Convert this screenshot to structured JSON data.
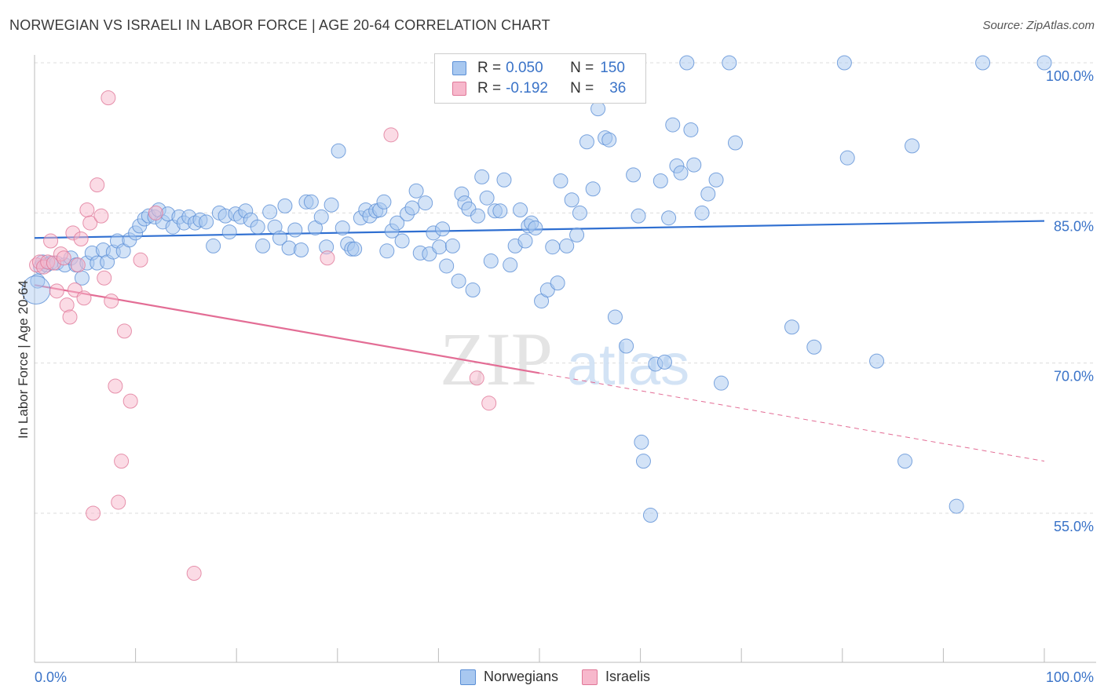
{
  "title": "NORWEGIAN VS ISRAELI IN LABOR FORCE | AGE 20-64 CORRELATION CHART",
  "source": "Source: ZipAtlas.com",
  "watermark": {
    "part1": "ZIP",
    "part2": "atlas"
  },
  "legend": {
    "r_label": "R = ",
    "n_label": "N = ",
    "rows": [
      {
        "r": "0.050",
        "n": "150",
        "color": "#a8c8f0",
        "border": "#5b8fd6"
      },
      {
        "r": "-0.192",
        "n": "36",
        "color": "#f7b8cc",
        "border": "#e07898"
      }
    ]
  },
  "bottom_legend": [
    {
      "label": "Norwegians",
      "color": "#a8c8f0",
      "border": "#5b8fd6"
    },
    {
      "label": "Israelis",
      "color": "#f7b8cc",
      "border": "#e07898"
    }
  ],
  "chart_data": {
    "type": "scatter",
    "ylabel": "In Labor Force | Age 20-64",
    "xlim": [
      0,
      100
    ],
    "ylim": [
      40,
      103
    ],
    "x_tick_labels": [
      {
        "value": 0,
        "label": "0.0%"
      },
      {
        "value": 100,
        "label": "100.0%"
      }
    ],
    "y_tick_labels": [
      {
        "value": 100,
        "label": "100.0%"
      },
      {
        "value": 85,
        "label": "85.0%"
      },
      {
        "value": 70,
        "label": "70.0%"
      },
      {
        "value": 55,
        "label": "55.0%"
      }
    ],
    "grid": "horizontal dashed",
    "series": [
      {
        "name": "Norwegians",
        "color": "#a8c8f0",
        "stroke": "#5b8fd6",
        "trend": {
          "x": [
            0,
            100
          ],
          "y": [
            82.5,
            84.2
          ],
          "color": "#2f6fd1"
        },
        "points": [
          [
            0.3,
            78.2
          ],
          [
            0.6,
            79.6
          ],
          [
            0.8,
            80.1
          ],
          [
            1.2,
            79.8
          ],
          [
            1.6,
            80.0
          ],
          [
            2.2,
            80.0
          ],
          [
            3.0,
            79.8
          ],
          [
            3.6,
            80.5
          ],
          [
            4.1,
            79.8
          ],
          [
            4.7,
            78.5
          ],
          [
            5.2,
            80.0
          ],
          [
            5.7,
            81.0
          ],
          [
            6.2,
            80.0
          ],
          [
            6.8,
            81.3
          ],
          [
            7.2,
            80.1
          ],
          [
            7.8,
            81.1
          ],
          [
            8.2,
            82.2
          ],
          [
            8.8,
            81.2
          ],
          [
            9.4,
            82.3
          ],
          [
            10.0,
            83.0
          ],
          [
            10.4,
            83.7
          ],
          [
            10.9,
            84.4
          ],
          [
            11.3,
            84.7
          ],
          [
            11.9,
            84.6
          ],
          [
            12.3,
            85.3
          ],
          [
            12.7,
            84.1
          ],
          [
            13.2,
            84.9
          ],
          [
            13.7,
            83.6
          ],
          [
            14.3,
            84.6
          ],
          [
            14.8,
            84.0
          ],
          [
            15.3,
            84.6
          ],
          [
            15.9,
            84.0
          ],
          [
            16.4,
            84.3
          ],
          [
            17.0,
            84.1
          ],
          [
            17.7,
            81.7
          ],
          [
            18.3,
            85.0
          ],
          [
            18.9,
            84.7
          ],
          [
            19.3,
            83.1
          ],
          [
            19.9,
            84.9
          ],
          [
            20.4,
            84.6
          ],
          [
            20.9,
            85.2
          ],
          [
            21.4,
            84.3
          ],
          [
            22.1,
            83.6
          ],
          [
            22.6,
            81.7
          ],
          [
            23.3,
            85.1
          ],
          [
            23.8,
            83.6
          ],
          [
            24.3,
            82.5
          ],
          [
            24.8,
            85.7
          ],
          [
            25.2,
            81.5
          ],
          [
            25.8,
            83.3
          ],
          [
            26.4,
            81.3
          ],
          [
            26.9,
            86.1
          ],
          [
            27.4,
            86.1
          ],
          [
            27.8,
            83.5
          ],
          [
            28.4,
            84.6
          ],
          [
            28.9,
            81.6
          ],
          [
            29.4,
            85.8
          ],
          [
            30.1,
            91.2
          ],
          [
            30.5,
            83.5
          ],
          [
            31.0,
            81.9
          ],
          [
            31.4,
            81.4
          ],
          [
            31.7,
            81.4
          ],
          [
            32.3,
            84.5
          ],
          [
            32.8,
            85.3
          ],
          [
            33.2,
            84.7
          ],
          [
            33.8,
            85.2
          ],
          [
            34.2,
            85.3
          ],
          [
            34.6,
            86.1
          ],
          [
            34.9,
            81.2
          ],
          [
            35.4,
            83.2
          ],
          [
            35.9,
            84.0
          ],
          [
            36.4,
            82.2
          ],
          [
            36.9,
            84.9
          ],
          [
            37.4,
            85.5
          ],
          [
            37.8,
            87.2
          ],
          [
            38.2,
            81.0
          ],
          [
            38.7,
            86.0
          ],
          [
            39.1,
            80.9
          ],
          [
            39.5,
            83.0
          ],
          [
            40.1,
            81.6
          ],
          [
            40.4,
            83.4
          ],
          [
            40.8,
            79.7
          ],
          [
            41.4,
            81.7
          ],
          [
            42.0,
            78.2
          ],
          [
            42.3,
            86.9
          ],
          [
            42.6,
            86.0
          ],
          [
            43.0,
            85.4
          ],
          [
            43.4,
            77.3
          ],
          [
            43.9,
            84.7
          ],
          [
            44.3,
            88.6
          ],
          [
            44.8,
            86.5
          ],
          [
            45.2,
            80.2
          ],
          [
            45.6,
            85.2
          ],
          [
            46.1,
            85.2
          ],
          [
            46.5,
            88.3
          ],
          [
            47.1,
            79.8
          ],
          [
            47.6,
            81.7
          ],
          [
            48.1,
            85.3
          ],
          [
            48.6,
            82.2
          ],
          [
            48.9,
            83.7
          ],
          [
            49.2,
            84.0
          ],
          [
            49.6,
            83.5
          ],
          [
            50.2,
            76.2
          ],
          [
            50.8,
            77.3
          ],
          [
            51.3,
            81.6
          ],
          [
            51.8,
            78.0
          ],
          [
            52.1,
            88.2
          ],
          [
            52.7,
            81.7
          ],
          [
            53.2,
            86.3
          ],
          [
            53.7,
            82.8
          ],
          [
            54.0,
            85.0
          ],
          [
            54.7,
            92.1
          ],
          [
            55.3,
            87.4
          ],
          [
            55.8,
            95.4
          ],
          [
            56.5,
            92.5
          ],
          [
            56.9,
            92.3
          ],
          [
            57.5,
            74.6
          ],
          [
            58.6,
            71.7
          ],
          [
            59.3,
            88.8
          ],
          [
            59.8,
            84.7
          ],
          [
            60.1,
            62.1
          ],
          [
            60.3,
            60.2
          ],
          [
            61.0,
            54.8
          ],
          [
            61.5,
            69.9
          ],
          [
            62.0,
            88.2
          ],
          [
            62.4,
            70.1
          ],
          [
            62.8,
            84.5
          ],
          [
            63.2,
            93.8
          ],
          [
            63.6,
            89.7
          ],
          [
            64.0,
            89.0
          ],
          [
            64.6,
            100.0
          ],
          [
            65.0,
            93.3
          ],
          [
            65.3,
            89.8
          ],
          [
            66.1,
            85.0
          ],
          [
            66.7,
            86.9
          ],
          [
            67.5,
            88.3
          ],
          [
            68.0,
            68.0
          ],
          [
            68.8,
            100.0
          ],
          [
            69.4,
            92.0
          ],
          [
            75.0,
            73.6
          ],
          [
            77.2,
            71.6
          ],
          [
            80.2,
            100.0
          ],
          [
            80.5,
            90.5
          ],
          [
            83.4,
            70.2
          ],
          [
            86.2,
            60.2
          ],
          [
            86.9,
            91.7
          ],
          [
            91.3,
            55.7
          ],
          [
            93.9,
            100.0
          ],
          [
            100.0,
            100.0
          ],
          [
            0.15,
            77.3
          ]
        ]
      },
      {
        "name": "Israelis",
        "color": "#f7b8cc",
        "stroke": "#e07898",
        "trend": {
          "x": [
            0,
            50
          ],
          "y": [
            77.8,
            69.0
          ],
          "dash_x": [
            50,
            100
          ],
          "dash_y": [
            69.0,
            60.2
          ],
          "color": "#e36d95"
        },
        "points": [
          [
            0.2,
            79.8
          ],
          [
            0.5,
            80.1
          ],
          [
            0.9,
            79.6
          ],
          [
            1.3,
            80.1
          ],
          [
            1.6,
            82.2
          ],
          [
            1.9,
            80.0
          ],
          [
            2.2,
            77.2
          ],
          [
            2.6,
            80.9
          ],
          [
            2.9,
            80.5
          ],
          [
            3.2,
            75.8
          ],
          [
            3.5,
            74.6
          ],
          [
            3.8,
            83.0
          ],
          [
            4.0,
            77.3
          ],
          [
            4.3,
            79.8
          ],
          [
            4.6,
            82.4
          ],
          [
            4.9,
            76.5
          ],
          [
            5.2,
            85.3
          ],
          [
            5.5,
            84.0
          ],
          [
            5.8,
            55.0
          ],
          [
            6.2,
            87.8
          ],
          [
            6.6,
            84.7
          ],
          [
            6.9,
            78.5
          ],
          [
            7.3,
            96.5
          ],
          [
            7.6,
            76.2
          ],
          [
            8.0,
            67.7
          ],
          [
            8.3,
            56.1
          ],
          [
            8.6,
            60.2
          ],
          [
            8.9,
            73.2
          ],
          [
            9.5,
            66.2
          ],
          [
            10.5,
            80.3
          ],
          [
            12.0,
            85.0
          ],
          [
            15.8,
            49.0
          ],
          [
            29.0,
            80.5
          ],
          [
            35.3,
            92.8
          ],
          [
            43.8,
            68.5
          ],
          [
            45.0,
            66.0
          ]
        ]
      }
    ]
  }
}
